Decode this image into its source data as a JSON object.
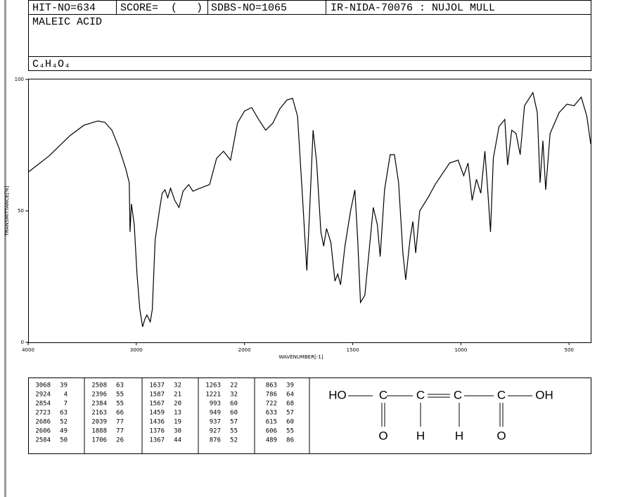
{
  "header": {
    "hit_no": "HIT-NO=634",
    "score": "SCORE=  (   )",
    "sdbs_no": "SDBS-NO=1065",
    "method": "IR-NIDA-70076 : NUJOL MULL",
    "name": "MALEIC ACID",
    "formula": "C₄H₄O₄"
  },
  "chart_data": {
    "type": "line",
    "color": "#000000",
    "xlabel": "WAVENUMBER[-1]",
    "ylabel": "TRANSMITTANCE[%]",
    "xlim": [
      4000,
      400
    ],
    "ylim": [
      0,
      100
    ],
    "xscale": "split",
    "xbreak": 2000,
    "xticks": [
      4000,
      3000,
      2000,
      1500,
      1000,
      500
    ],
    "yticks": [
      0,
      50,
      100
    ],
    "x": [
      4000,
      3806,
      3613,
      3484,
      3355,
      3290,
      3226,
      3161,
      3097,
      3065,
      3058,
      3045,
      3019,
      2994,
      2968,
      2942,
      2923,
      2903,
      2871,
      2852,
      2826,
      2787,
      2761,
      2735,
      2710,
      2684,
      2645,
      2606,
      2568,
      2516,
      2477,
      2413,
      2323,
      2258,
      2194,
      2129,
      2065,
      2000,
      1967,
      1935,
      1902,
      1869,
      1837,
      1804,
      1778,
      1755,
      1732,
      1712,
      1699,
      1683,
      1667,
      1647,
      1634,
      1621,
      1601,
      1582,
      1569,
      1556,
      1536,
      1510,
      1490,
      1477,
      1464,
      1444,
      1425,
      1405,
      1386,
      1373,
      1353,
      1327,
      1307,
      1288,
      1268,
      1255,
      1235,
      1222,
      1209,
      1190,
      1150,
      1118,
      1052,
      1013,
      987,
      967,
      948,
      928,
      908,
      889,
      876,
      863,
      850,
      824,
      797,
      784,
      765,
      745,
      726,
      706,
      667,
      647,
      634,
      621,
      608,
      588,
      546,
      510,
      477,
      444,
      418,
      400
    ],
    "values": [
      64.7,
      70.9,
      78.6,
      82.6,
      84.2,
      83.7,
      80.7,
      74,
      66,
      60.7,
      42,
      52.7,
      44.7,
      26,
      12.6,
      5.9,
      8.6,
      10.4,
      7.8,
      12.6,
      39,
      50,
      56.7,
      58,
      55,
      58.6,
      54,
      51.3,
      57.5,
      60,
      57.5,
      58.6,
      60,
      70,
      72.7,
      69.3,
      83.4,
      88,
      89.3,
      84.8,
      80.7,
      83.4,
      88.8,
      92.2,
      92.8,
      86,
      55,
      27.3,
      50,
      80.7,
      68.7,
      42,
      36.6,
      43.3,
      38,
      23.3,
      26,
      21.9,
      36.6,
      50,
      58,
      39.3,
      15.2,
      17.9,
      34,
      51.3,
      44.7,
      32.6,
      58,
      71.4,
      71.4,
      60.7,
      34,
      23.8,
      39.3,
      46,
      34,
      50,
      55.3,
      60.2,
      68.2,
      69.3,
      63.4,
      68.2,
      54,
      62,
      56.7,
      72.7,
      58,
      42,
      70,
      82,
      84.8,
      67.4,
      80.7,
      79.4,
      71.4,
      90,
      95,
      87.4,
      60.7,
      76.7,
      58,
      79.4,
      87.4,
      90.6,
      90,
      93.3,
      86,
      75.4
    ]
  },
  "peak_table": [
    [
      [
        3068,
        39
      ],
      [
        2924,
        4
      ],
      [
        2854,
        7
      ],
      [
        2723,
        63
      ],
      [
        2686,
        52
      ],
      [
        2606,
        49
      ],
      [
        2584,
        50
      ]
    ],
    [
      [
        2508,
        63
      ],
      [
        2396,
        55
      ],
      [
        2384,
        55
      ],
      [
        2163,
        66
      ],
      [
        2039,
        77
      ],
      [
        1888,
        77
      ],
      [
        1706,
        26
      ]
    ],
    [
      [
        1637,
        32
      ],
      [
        1587,
        21
      ],
      [
        1567,
        20
      ],
      [
        1459,
        13
      ],
      [
        1436,
        19
      ],
      [
        1376,
        30
      ],
      [
        1367,
        44
      ]
    ],
    [
      [
        1263,
        22
      ],
      [
        1221,
        32
      ],
      [
        993,
        60
      ],
      [
        949,
        60
      ],
      [
        937,
        57
      ],
      [
        927,
        55
      ],
      [
        876,
        52
      ]
    ],
    [
      [
        863,
        39
      ],
      [
        786,
        64
      ],
      [
        722,
        68
      ],
      [
        633,
        57
      ],
      [
        615,
        60
      ],
      [
        606,
        55
      ],
      [
        489,
        86
      ]
    ]
  ],
  "structure": {
    "atoms": [
      "HO",
      "C",
      "C",
      "C",
      "C",
      "OH",
      "O",
      "H",
      "H",
      "O"
    ]
  }
}
